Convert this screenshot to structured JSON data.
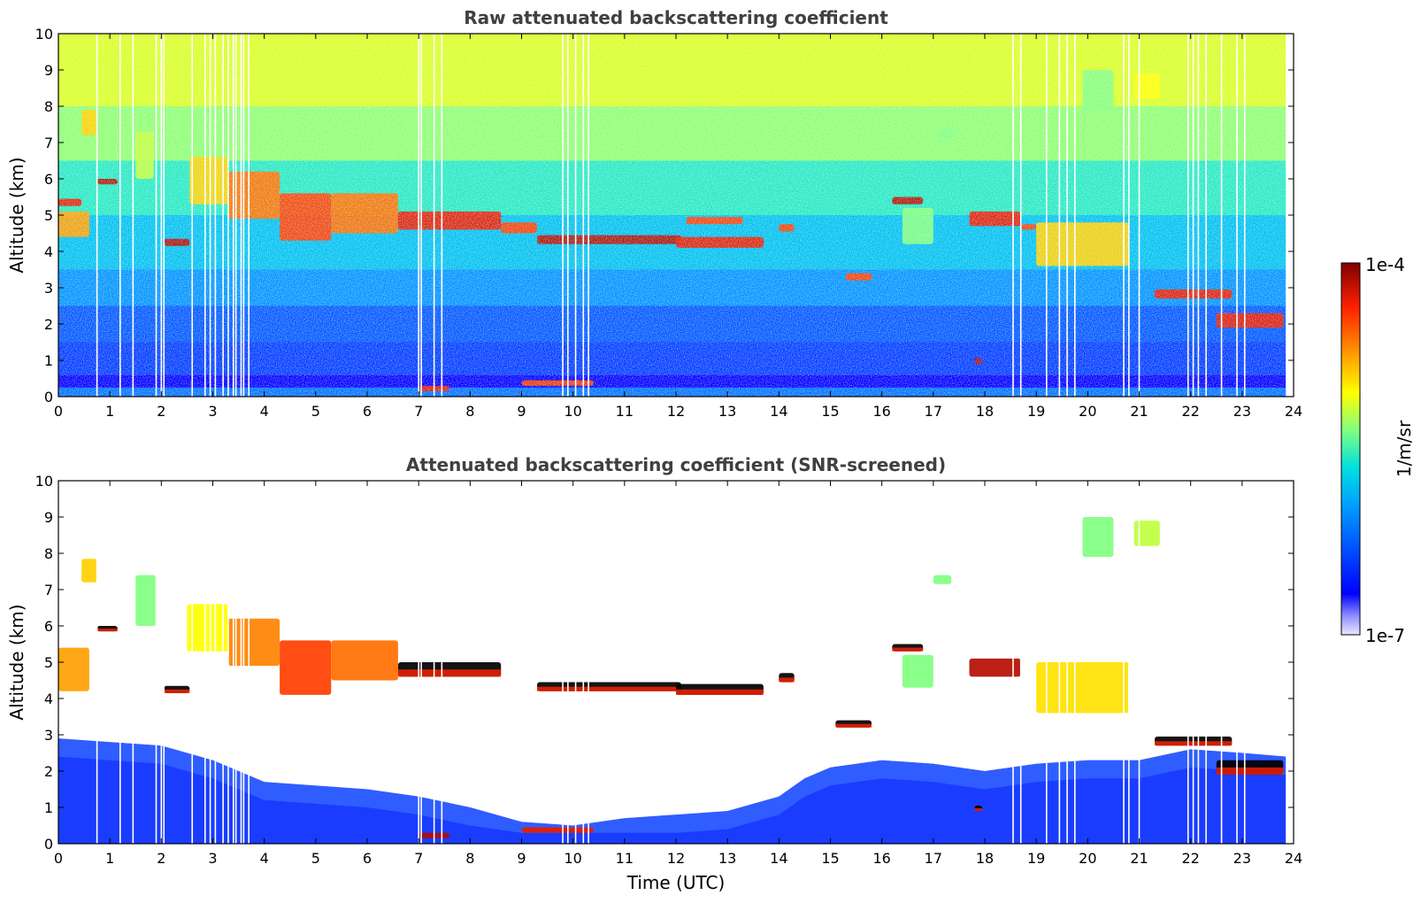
{
  "chart_data": [
    {
      "type": "heatmap",
      "title": "Raw attenuated backscattering coefficient",
      "xlabel": "",
      "ylabel": "Altitude (km)",
      "xlim": [
        0,
        24
      ],
      "ylim": [
        0,
        10
      ],
      "xticks": [
        "0",
        "1",
        "2",
        "3",
        "4",
        "5",
        "6",
        "7",
        "8",
        "9",
        "10",
        "11",
        "12",
        "13",
        "14",
        "15",
        "16",
        "17",
        "18",
        "19",
        "20",
        "21",
        "22",
        "23",
        "24"
      ],
      "yticks": [
        "0",
        "1",
        "2",
        "3",
        "4",
        "5",
        "6",
        "7",
        "8",
        "9",
        "10"
      ],
      "data_end_time": 23.85,
      "layers": [
        {
          "t0": 0.0,
          "t1": 0.6,
          "z0": 4.4,
          "z1": 5.1,
          "level": 0.75
        },
        {
          "t0": 0.0,
          "t1": 0.45,
          "z0": 5.25,
          "z1": 5.45,
          "level": 0.9
        },
        {
          "t0": 0.45,
          "t1": 0.75,
          "z0": 7.2,
          "z1": 7.9,
          "level": 0.7
        },
        {
          "t0": 0.75,
          "t1": 1.15,
          "z0": 5.85,
          "z1": 6.0,
          "level": 0.95
        },
        {
          "t0": 1.5,
          "t1": 1.85,
          "z0": 6.0,
          "z1": 7.3,
          "level": 0.6
        },
        {
          "t0": 2.05,
          "t1": 2.55,
          "z0": 4.15,
          "z1": 4.35,
          "level": 0.95
        },
        {
          "t0": 2.55,
          "t1": 3.3,
          "z0": 5.3,
          "z1": 6.6,
          "level": 0.7
        },
        {
          "t0": 3.3,
          "t1": 4.3,
          "z0": 4.9,
          "z1": 6.2,
          "level": 0.8
        },
        {
          "t0": 4.3,
          "t1": 5.3,
          "z0": 4.3,
          "z1": 5.6,
          "level": 0.85
        },
        {
          "t0": 5.3,
          "t1": 6.6,
          "z0": 4.5,
          "z1": 5.6,
          "level": 0.8
        },
        {
          "t0": 6.6,
          "t1": 8.6,
          "z0": 4.6,
          "z1": 5.1,
          "level": 0.9
        },
        {
          "t0": 8.6,
          "t1": 9.3,
          "z0": 4.5,
          "z1": 4.8,
          "level": 0.85
        },
        {
          "t0": 9.3,
          "t1": 12.1,
          "z0": 4.2,
          "z1": 4.45,
          "level": 0.95
        },
        {
          "t0": 12.0,
          "t1": 13.7,
          "z0": 4.1,
          "z1": 4.4,
          "level": 0.9
        },
        {
          "t0": 12.2,
          "t1": 13.3,
          "z0": 4.75,
          "z1": 4.95,
          "level": 0.85
        },
        {
          "t0": 14.0,
          "t1": 14.3,
          "z0": 4.55,
          "z1": 4.75,
          "level": 0.85
        },
        {
          "t0": 15.3,
          "t1": 15.8,
          "z0": 3.2,
          "z1": 3.4,
          "level": 0.85
        },
        {
          "t0": 16.2,
          "t1": 16.8,
          "z0": 5.3,
          "z1": 5.5,
          "level": 0.95
        },
        {
          "t0": 16.4,
          "t1": 17.0,
          "z0": 4.2,
          "z1": 5.2,
          "level": 0.55
        },
        {
          "t0": 17.1,
          "t1": 17.4,
          "z0": 7.1,
          "z1": 7.4,
          "level": 0.55
        },
        {
          "t0": 17.7,
          "t1": 18.7,
          "z0": 4.7,
          "z1": 5.1,
          "level": 0.9
        },
        {
          "t0": 18.7,
          "t1": 19.0,
          "z0": 4.6,
          "z1": 4.75,
          "level": 0.85
        },
        {
          "t0": 19.0,
          "t1": 20.8,
          "z0": 3.6,
          "z1": 4.8,
          "level": 0.7
        },
        {
          "t0": 19.9,
          "t1": 20.5,
          "z0": 7.9,
          "z1": 9.0,
          "level": 0.55
        },
        {
          "t0": 20.9,
          "t1": 21.4,
          "z0": 8.2,
          "z1": 8.9,
          "level": 0.65
        },
        {
          "t0": 17.8,
          "t1": 17.95,
          "z0": 0.9,
          "z1": 1.05,
          "level": 0.95
        },
        {
          "t0": 7.0,
          "t1": 7.6,
          "z0": 0.15,
          "z1": 0.3,
          "level": 0.9
        },
        {
          "t0": 9.0,
          "t1": 10.4,
          "z0": 0.3,
          "z1": 0.45,
          "level": 0.85
        },
        {
          "t0": 21.3,
          "t1": 22.8,
          "z0": 2.7,
          "z1": 2.95,
          "level": 0.9
        },
        {
          "t0": 22.5,
          "t1": 23.8,
          "z0": 1.9,
          "z1": 2.3,
          "level": 0.9
        }
      ]
    },
    {
      "type": "heatmap",
      "title": "Attenuated backscattering coefficient (SNR-screened)",
      "xlabel": "Time (UTC)",
      "ylabel": "Altitude (km)",
      "xlim": [
        0,
        24
      ],
      "ylim": [
        0,
        10
      ],
      "xticks": [
        "0",
        "1",
        "2",
        "3",
        "4",
        "5",
        "6",
        "7",
        "8",
        "9",
        "10",
        "11",
        "12",
        "13",
        "14",
        "15",
        "16",
        "17",
        "18",
        "19",
        "20",
        "21",
        "22",
        "23",
        "24"
      ],
      "yticks": [
        "0",
        "1",
        "2",
        "3",
        "4",
        "5",
        "6",
        "7",
        "8",
        "9",
        "10"
      ],
      "data_end_time": 23.85,
      "boundary_layer_top_km": [
        [
          0,
          2.9
        ],
        [
          2,
          2.7
        ],
        [
          3,
          2.3
        ],
        [
          4,
          1.7
        ],
        [
          5,
          1.6
        ],
        [
          6,
          1.5
        ],
        [
          7,
          1.3
        ],
        [
          8,
          1.0
        ],
        [
          9,
          0.6
        ],
        [
          10,
          0.5
        ],
        [
          11,
          0.7
        ],
        [
          12,
          0.8
        ],
        [
          13,
          0.9
        ],
        [
          14,
          1.3
        ],
        [
          14.5,
          1.8
        ],
        [
          15,
          2.1
        ],
        [
          16,
          2.3
        ],
        [
          17,
          2.2
        ],
        [
          18,
          2.0
        ],
        [
          19,
          2.2
        ],
        [
          20,
          2.3
        ],
        [
          21,
          2.3
        ],
        [
          22,
          2.6
        ],
        [
          23,
          2.5
        ],
        [
          23.85,
          2.4
        ]
      ],
      "layers": [
        {
          "t0": 0.0,
          "t1": 0.6,
          "z0": 4.2,
          "z1": 5.4,
          "level": 0.75
        },
        {
          "t0": 0.45,
          "t1": 0.75,
          "z0": 7.2,
          "z1": 7.85,
          "level": 0.7
        },
        {
          "t0": 0.75,
          "t1": 1.15,
          "z0": 5.85,
          "z1": 6.0,
          "level": 0.98
        },
        {
          "t0": 1.5,
          "t1": 1.9,
          "z0": 6.0,
          "z1": 7.4,
          "level": 0.55
        },
        {
          "t0": 2.05,
          "t1": 2.55,
          "z0": 4.15,
          "z1": 4.35,
          "level": 0.98
        },
        {
          "t0": 2.5,
          "t1": 3.3,
          "z0": 5.3,
          "z1": 6.6,
          "level": 0.65
        },
        {
          "t0": 3.3,
          "t1": 4.3,
          "z0": 4.9,
          "z1": 6.2,
          "level": 0.78
        },
        {
          "t0": 4.3,
          "t1": 5.3,
          "z0": 4.1,
          "z1": 5.6,
          "level": 0.85
        },
        {
          "t0": 5.3,
          "t1": 6.6,
          "z0": 4.5,
          "z1": 5.6,
          "level": 0.8
        },
        {
          "t0": 6.6,
          "t1": 8.6,
          "z0": 4.6,
          "z1": 5.0,
          "level": 0.98
        },
        {
          "t0": 9.3,
          "t1": 12.1,
          "z0": 4.2,
          "z1": 4.45,
          "level": 0.98
        },
        {
          "t0": 12.0,
          "t1": 13.7,
          "z0": 4.1,
          "z1": 4.4,
          "level": 0.98
        },
        {
          "t0": 14.0,
          "t1": 14.3,
          "z0": 4.45,
          "z1": 4.7,
          "level": 0.98
        },
        {
          "t0": 15.1,
          "t1": 15.8,
          "z0": 3.2,
          "z1": 3.4,
          "level": 0.98
        },
        {
          "t0": 16.2,
          "t1": 16.8,
          "z0": 5.3,
          "z1": 5.5,
          "level": 0.98
        },
        {
          "t0": 16.4,
          "t1": 17.0,
          "z0": 4.3,
          "z1": 5.2,
          "level": 0.55
        },
        {
          "t0": 17.0,
          "t1": 17.35,
          "z0": 7.15,
          "z1": 7.4,
          "level": 0.55
        },
        {
          "t0": 17.7,
          "t1": 18.7,
          "z0": 4.6,
          "z1": 5.1,
          "level": 0.95
        },
        {
          "t0": 19.0,
          "t1": 20.8,
          "z0": 3.6,
          "z1": 5.0,
          "level": 0.68
        },
        {
          "t0": 19.9,
          "t1": 20.5,
          "z0": 7.9,
          "z1": 9.0,
          "level": 0.55
        },
        {
          "t0": 20.9,
          "t1": 21.4,
          "z0": 8.2,
          "z1": 8.9,
          "level": 0.6
        },
        {
          "t0": 17.8,
          "t1": 17.95,
          "z0": 0.9,
          "z1": 1.05,
          "level": 0.98
        },
        {
          "t0": 7.0,
          "t1": 7.6,
          "z0": 0.15,
          "z1": 0.3,
          "level": 0.95
        },
        {
          "t0": 9.0,
          "t1": 10.4,
          "z0": 0.3,
          "z1": 0.45,
          "level": 0.9
        },
        {
          "t0": 21.3,
          "t1": 22.8,
          "z0": 2.7,
          "z1": 2.95,
          "level": 0.98
        },
        {
          "t0": 22.5,
          "t1": 23.8,
          "z0": 1.9,
          "z1": 2.3,
          "level": 0.98
        }
      ]
    }
  ],
  "colorbar": {
    "label": "1/m/sr",
    "max_label": "1e-4",
    "min_label": "1e-7",
    "scale": "log",
    "colormap": "jet"
  }
}
